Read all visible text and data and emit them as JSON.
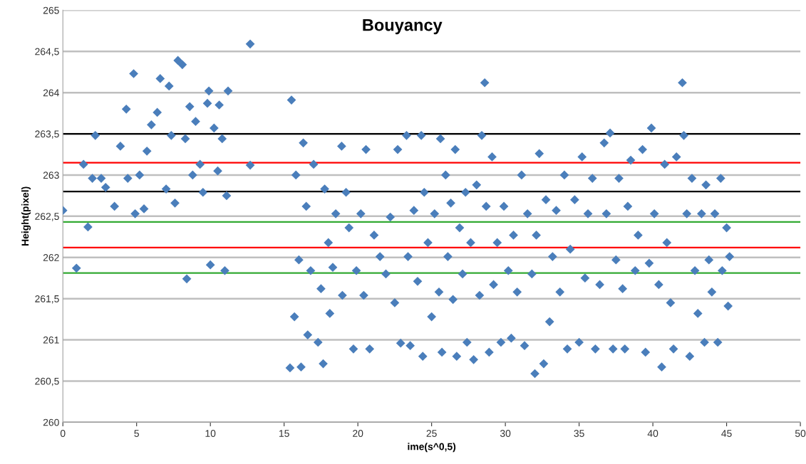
{
  "chart_data": {
    "type": "scatter",
    "title": "Bouyancy",
    "xlabel": "ime(s^0,5)",
    "ylabel": "Height(pixel)",
    "xlim": [
      0,
      50
    ],
    "xticks": [
      0,
      5,
      10,
      15,
      20,
      25,
      30,
      35,
      40,
      45,
      50
    ],
    "ylim": [
      260,
      265
    ],
    "yticks": [
      260,
      {
        "value": 260.5,
        "label": "260,5"
      },
      261,
      {
        "value": 261.5,
        "label": "261,5"
      },
      262,
      {
        "value": 262.5,
        "label": "262,5"
      },
      263,
      {
        "value": 263.5,
        "label": "263,5"
      },
      264,
      {
        "value": 264.5,
        "label": "264,5"
      },
      265
    ],
    "grid": "y",
    "marker": "diamond",
    "legend": false,
    "ref_lines": [
      {
        "axis": "y",
        "value": 263.5,
        "color": "#000000"
      },
      {
        "axis": "y",
        "value": 263.15,
        "color": "#ff0000"
      },
      {
        "axis": "y",
        "value": 262.8,
        "color": "#000000"
      },
      {
        "axis": "y",
        "value": 262.43,
        "color": "#33aa33"
      },
      {
        "axis": "y",
        "value": 262.12,
        "color": "#ff0000"
      },
      {
        "axis": "y",
        "value": 261.81,
        "color": "#33aa33"
      }
    ],
    "series": [
      {
        "color": "#4a7ebb",
        "x": [
          0,
          0.92,
          1.4,
          1.7,
          2.2,
          2.0,
          2.6,
          2.9,
          3.5,
          3.9,
          4.3,
          4.4,
          4.8,
          4.9,
          5.2,
          5.5,
          5.7,
          6.0,
          6.4,
          6.6,
          7.0,
          7.2,
          7.35,
          7.6,
          7.8,
          8.1,
          8.3,
          8.4,
          8.6,
          8.8,
          9.0,
          9.3,
          9.5,
          9.8,
          9.9,
          10.0,
          10.25,
          10.5,
          10.6,
          10.8,
          10.98,
          11.2,
          11.1,
          12.7,
          12.7,
          15.5,
          15.4,
          15.7,
          15.8,
          16.0,
          16.15,
          16.3,
          16.5,
          16.6,
          16.8,
          17.0,
          17.3,
          17.5,
          17.65,
          17.75,
          18.0,
          18.1,
          18.3,
          18.5,
          18.9,
          18.95,
          19.2,
          19.4,
          19.7,
          19.9,
          20.2,
          20.4,
          20.55,
          20.8,
          21.1,
          21.5,
          21.9,
          22.2,
          22.5,
          22.7,
          22.9,
          23.3,
          23.4,
          23.55,
          23.8,
          24.05,
          24.3,
          24.4,
          24.5,
          24.75,
          25.0,
          25.2,
          25.5,
          25.6,
          25.7,
          25.95,
          26.1,
          26.3,
          26.45,
          26.6,
          26.7,
          26.9,
          27.1,
          27.3,
          27.4,
          27.65,
          27.85,
          28.05,
          28.25,
          28.4,
          28.6,
          28.7,
          28.9,
          29.1,
          29.2,
          29.45,
          29.7,
          29.9,
          30.2,
          30.4,
          30.55,
          30.8,
          31.1,
          31.3,
          31.5,
          31.8,
          32.0,
          32.1,
          32.3,
          32.6,
          32.75,
          33.0,
          33.2,
          33.45,
          33.7,
          34.0,
          34.2,
          34.4,
          34.7,
          35.0,
          35.2,
          35.4,
          35.6,
          35.9,
          36.1,
          36.4,
          36.7,
          36.85,
          37.1,
          37.3,
          37.5,
          37.7,
          37.95,
          38.1,
          38.3,
          38.5,
          38.8,
          39.0,
          39.3,
          39.5,
          39.75,
          39.9,
          40.1,
          40.4,
          40.6,
          40.8,
          40.95,
          41.2,
          41.4,
          41.6,
          42.0,
          42.1,
          42.3,
          42.5,
          42.65,
          42.85,
          43.05,
          43.3,
          43.5,
          43.6,
          43.8,
          44.0,
          44.2,
          44.4,
          44.6,
          44.7,
          45.0,
          45.1,
          45.2
        ],
        "values": [
          262.57,
          261.87,
          263.13,
          262.37,
          263.48,
          262.96,
          262.96,
          262.85,
          262.62,
          263.35,
          263.8,
          262.96,
          264.23,
          262.53,
          263.0,
          262.59,
          263.29,
          263.61,
          263.76,
          264.17,
          262.83,
          264.08,
          263.48,
          262.66,
          264.39,
          264.34,
          263.44,
          261.74,
          263.83,
          263.0,
          263.65,
          263.13,
          262.79,
          263.87,
          264.02,
          261.91,
          263.57,
          263.05,
          263.85,
          263.44,
          261.84,
          264.02,
          262.75,
          264.59,
          263.12,
          263.91,
          260.66,
          261.28,
          263.0,
          261.97,
          260.67,
          263.39,
          262.62,
          261.06,
          261.84,
          263.13,
          260.97,
          261.62,
          260.71,
          262.83,
          262.18,
          261.32,
          261.88,
          262.53,
          263.35,
          261.54,
          262.79,
          262.36,
          260.89,
          261.84,
          262.53,
          261.54,
          263.31,
          260.89,
          262.27,
          262.01,
          261.8,
          262.49,
          261.45,
          263.31,
          260.96,
          263.48,
          262.01,
          260.93,
          262.57,
          261.71,
          263.48,
          260.8,
          262.79,
          262.18,
          261.28,
          262.53,
          261.58,
          263.44,
          260.85,
          263.0,
          262.01,
          262.66,
          261.49,
          263.31,
          260.8,
          262.36,
          261.8,
          262.79,
          260.97,
          262.18,
          260.76,
          262.88,
          261.54,
          263.48,
          264.12,
          262.62,
          260.85,
          263.22,
          261.67,
          262.18,
          260.97,
          262.62,
          261.84,
          261.02,
          262.27,
          261.58,
          263.0,
          260.93,
          262.53,
          261.8,
          260.59,
          262.27,
          263.26,
          260.71,
          262.7,
          261.22,
          262.01,
          262.57,
          261.58,
          263.0,
          260.89,
          262.1,
          262.7,
          260.97,
          263.22,
          261.75,
          262.53,
          262.96,
          260.89,
          261.67,
          263.39,
          262.53,
          263.51,
          260.89,
          261.97,
          262.96,
          261.62,
          260.89,
          262.62,
          263.18,
          261.84,
          262.27,
          263.31,
          260.85,
          261.93,
          263.57,
          262.53,
          261.67,
          260.67,
          263.13,
          262.18,
          261.45,
          260.89,
          263.22,
          264.12,
          263.48,
          262.53,
          260.8,
          262.96,
          261.84,
          261.32,
          262.53,
          260.97,
          262.88,
          261.97,
          261.58,
          262.53,
          260.97,
          262.96,
          261.84,
          262.36,
          261.41,
          262.01
        ]
      }
    ]
  }
}
